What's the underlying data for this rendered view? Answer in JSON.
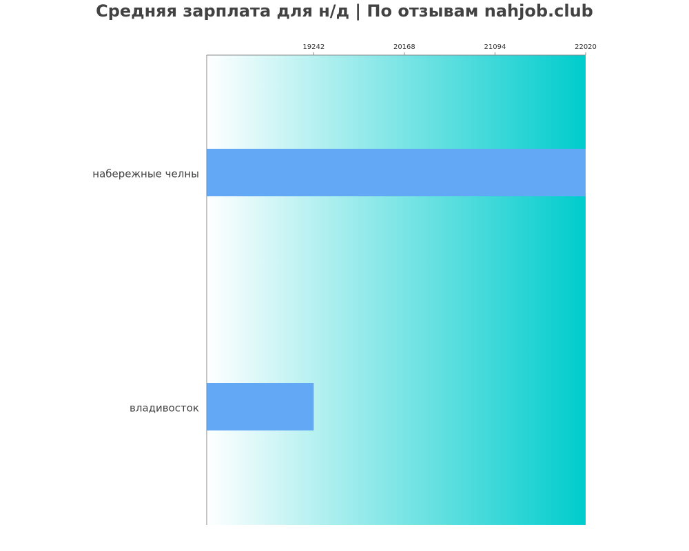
{
  "chart_data": {
    "type": "bar",
    "orientation": "horizontal",
    "title": "Средняя зарплата для н/д | По отзывам nahjob.club",
    "categories": [
      "набережные челны",
      "владивосток"
    ],
    "values": [
      22020,
      19242
    ],
    "x_ticks": [
      19242,
      20168,
      21094,
      22020
    ],
    "xlim": [
      18149,
      22020
    ],
    "xaxis_position": "top",
    "grid": false,
    "legend": "none",
    "colors": {
      "bar": "#63a8f4",
      "gradient_start": "#ffffff",
      "gradient_end": "#00cccc",
      "axis": "#888888",
      "text": "#424242"
    }
  }
}
